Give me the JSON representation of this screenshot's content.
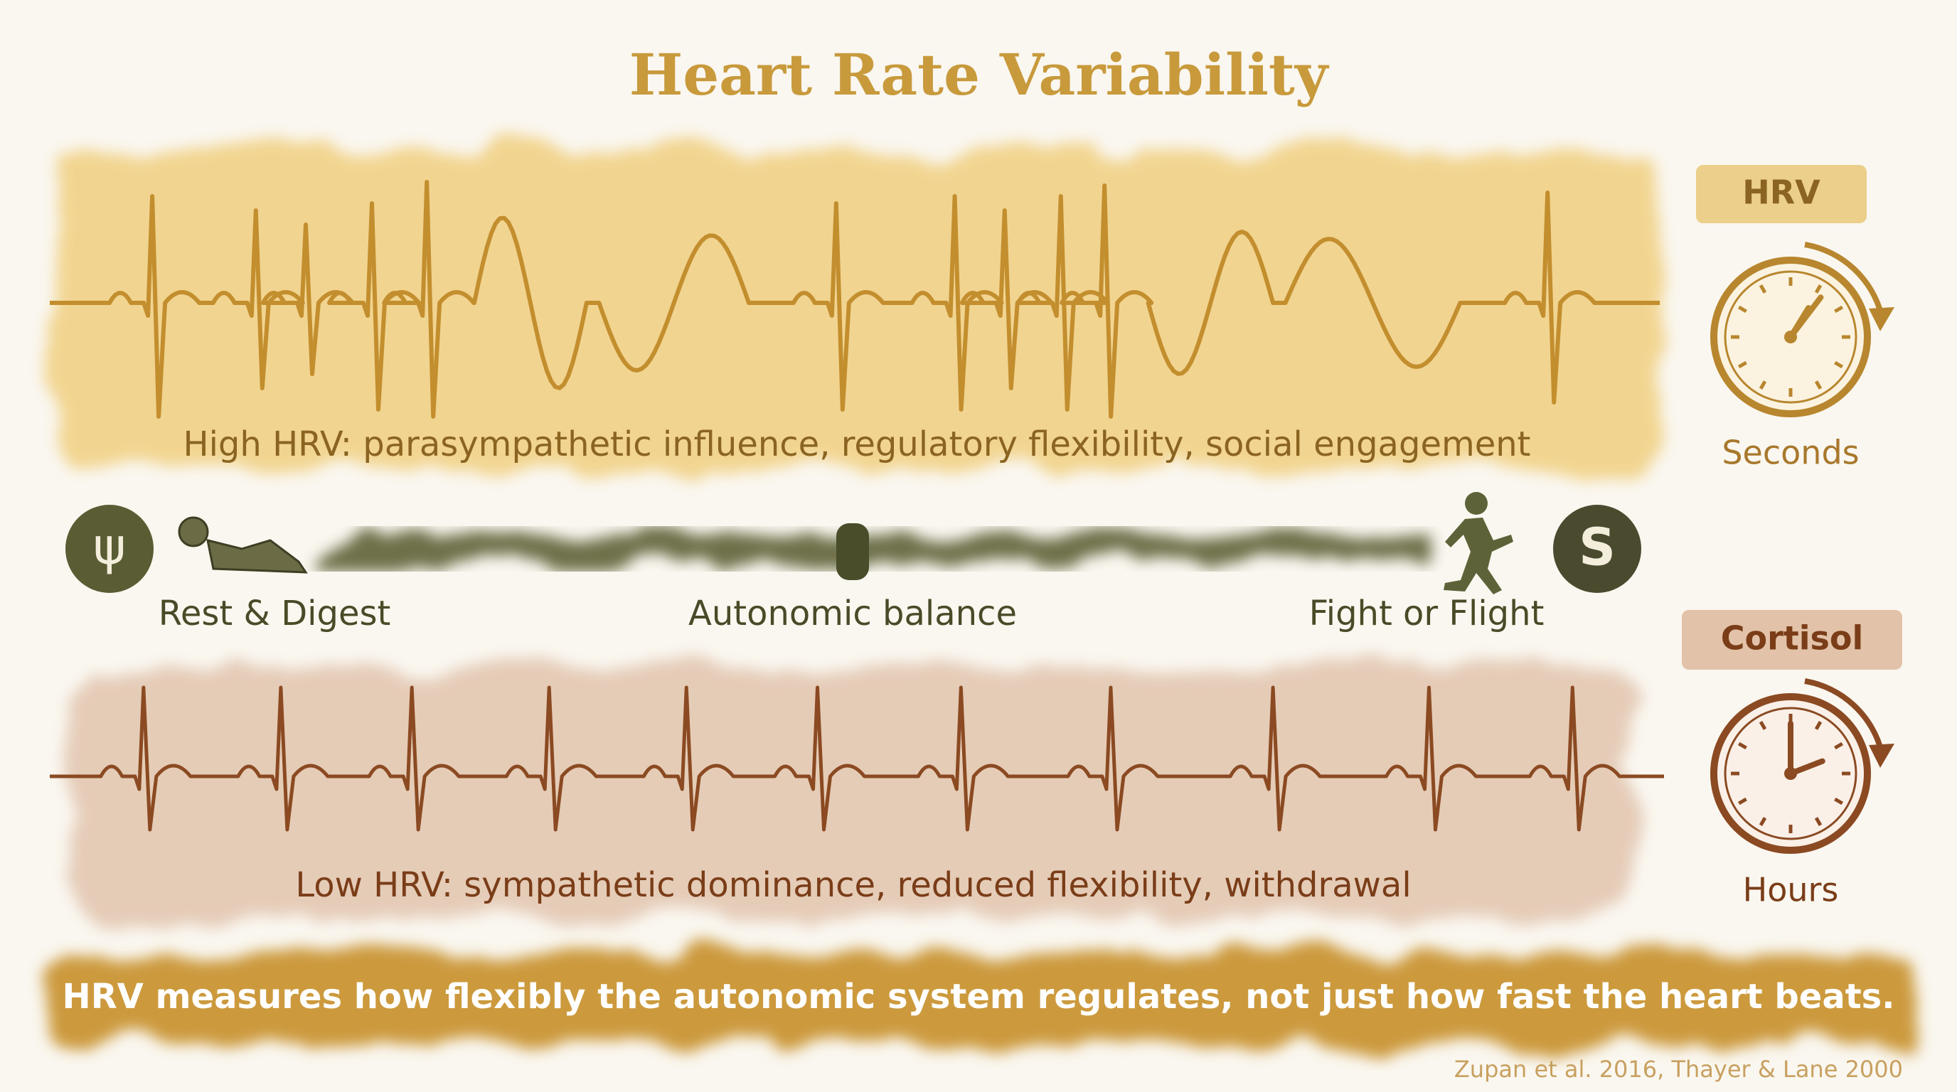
{
  "title": "Heart Rate Variability",
  "high_hrv": {
    "label": "High HRV: parasympathetic influence, regulatory flexibility, social engagement"
  },
  "balance": {
    "left_symbol": "ψ",
    "left_label": "Rest & Digest",
    "center_label": "Autonomic balance",
    "right_label": "Fight or Flight",
    "right_symbol": "S"
  },
  "low_hrv": {
    "label": "Low HRV: sympathetic dominance, reduced flexibility, withdrawal"
  },
  "side": {
    "hrv": {
      "tag": "HRV",
      "timescale": "Seconds"
    },
    "cortisol": {
      "tag": "Cortisol",
      "timescale": "Hours"
    }
  },
  "footer": {
    "message": "HRV measures how flexibly the autonomic system regulates, not just how fast the heart beats.",
    "citation": "Zupan et al. 2016, Thayer & Lane 2000"
  }
}
